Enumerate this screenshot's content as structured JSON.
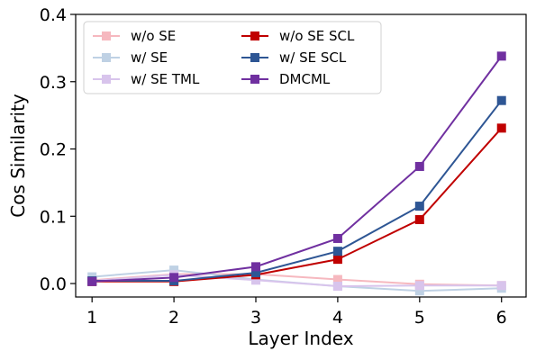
{
  "chart_data": {
    "type": "line",
    "xlabel": "Layer Index",
    "ylabel": "Cos Similarity",
    "x": [
      1,
      2,
      3,
      4,
      5,
      6
    ],
    "xlim": [
      0.8,
      6.3
    ],
    "ylim": [
      -0.02,
      0.4
    ],
    "xticks": [
      "1",
      "2",
      "3",
      "4",
      "5",
      "6"
    ],
    "yticks": [
      "0.0",
      "0.1",
      "0.2",
      "0.3",
      "0.4"
    ],
    "legend_position": "top-left",
    "grid": false,
    "series": [
      {
        "name": "w/o SE",
        "color": "#f6b8bf",
        "values": [
          0.005,
          0.014,
          0.014,
          0.006,
          -0.001,
          -0.003
        ]
      },
      {
        "name": "w/ SE",
        "color": "#bfd1e4",
        "values": [
          0.01,
          0.02,
          0.006,
          -0.004,
          -0.011,
          -0.007
        ]
      },
      {
        "name": "w/ SE TML",
        "color": "#d8c4ec",
        "values": [
          0.004,
          0.013,
          0.005,
          -0.004,
          -0.003,
          -0.003
        ]
      },
      {
        "name": "w/o SE SCL",
        "color": "#c00000",
        "values": [
          0.003,
          0.003,
          0.013,
          0.036,
          0.095,
          0.231
        ]
      },
      {
        "name": "w/ SE SCL",
        "color": "#2e5694",
        "values": [
          0.004,
          0.004,
          0.016,
          0.048,
          0.115,
          0.272
        ]
      },
      {
        "name": "DMCML",
        "color": "#7030a0",
        "values": [
          0.003,
          0.009,
          0.025,
          0.067,
          0.174,
          0.338
        ]
      }
    ]
  }
}
